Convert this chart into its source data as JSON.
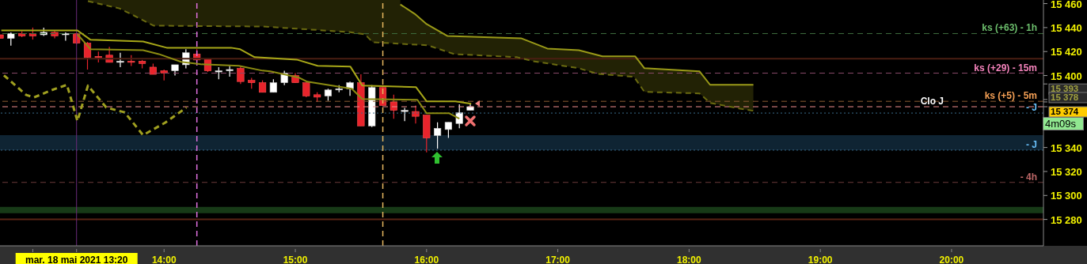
{
  "chart_data": {
    "type": "candlestick",
    "x": [
      12.75,
      12.8333,
      12.9167,
      13,
      13.0833,
      13.1667,
      13.25,
      13.3333,
      13.4167,
      13.5,
      13.5833,
      13.6667,
      13.75,
      13.8333,
      13.9167,
      14,
      14.0833,
      14.1667,
      14.25,
      14.3333,
      14.4167,
      14.5,
      14.5833,
      14.6667,
      14.75,
      14.8333,
      14.9167,
      15,
      15.0833,
      15.1667,
      15.25,
      15.3333,
      15.4167,
      15.5,
      15.5833,
      15.6667,
      15.75,
      15.8333,
      15.9167,
      16,
      16.0833,
      16.1667,
      16.25,
      16.3333
    ],
    "ohlc": [
      [
        15434,
        15434,
        15431,
        15431
      ],
      [
        15431,
        15436,
        15425,
        15435
      ],
      [
        15435,
        15437,
        15432,
        15433
      ],
      [
        15435,
        15440,
        15430,
        15433
      ],
      [
        15434,
        15440,
        15433,
        15436
      ],
      [
        15436,
        15438,
        15431,
        15433
      ],
      [
        15434,
        15436,
        15429,
        15435
      ],
      [
        15435,
        15435,
        15426,
        15427
      ],
      [
        15427,
        15428,
        15405,
        15415
      ],
      [
        15416,
        15420,
        15411,
        15415
      ],
      [
        15417,
        15424,
        15411,
        15411
      ],
      [
        15411,
        15419,
        15407,
        15412
      ],
      [
        15412,
        15417,
        15408,
        15411
      ],
      [
        15412,
        15413,
        15406,
        15410
      ],
      [
        15407,
        15410,
        15401,
        15401
      ],
      [
        15404,
        15405,
        15396,
        15402
      ],
      [
        15404,
        15409,
        15400,
        15409
      ],
      [
        15409,
        15422,
        15406,
        15419
      ],
      [
        15418,
        15422,
        15413,
        15413
      ],
      [
        15414,
        15414,
        15403,
        15404
      ],
      [
        15403,
        15407,
        15397,
        15404
      ],
      [
        15404,
        15408,
        15399,
        15405
      ],
      [
        15406,
        15408,
        15393,
        15395
      ],
      [
        15396,
        15398,
        15389,
        15394
      ],
      [
        15394,
        15396,
        15386,
        15386
      ],
      [
        15386,
        15397,
        15386,
        15394
      ],
      [
        15394,
        15404,
        15392,
        15402
      ],
      [
        15400,
        15402,
        15394,
        15394
      ],
      [
        15394,
        15394,
        15382,
        15383
      ],
      [
        15384,
        15386,
        15378,
        15382
      ],
      [
        15383,
        15389,
        15379,
        15388
      ],
      [
        15388,
        15392,
        15386,
        15389
      ],
      [
        15389,
        15395,
        15383,
        15394
      ],
      [
        15394,
        15401,
        15358,
        15358
      ],
      [
        15358,
        15392,
        15357,
        15390
      ],
      [
        15390,
        15392,
        15375,
        15375
      ],
      [
        15378,
        15384,
        15364,
        15371
      ],
      [
        15370,
        15373,
        15362,
        15371
      ],
      [
        15370,
        15375,
        15360,
        15366
      ],
      [
        15367,
        15367,
        15336,
        15348
      ],
      [
        15350,
        15361,
        15339,
        15356
      ],
      [
        15355,
        15361,
        15348,
        15361
      ],
      [
        15360,
        15376,
        15356,
        15369
      ],
      [
        15371,
        15377,
        15371,
        15374
      ]
    ],
    "colors": [
      "#e8242c",
      "#ffffff",
      "#e8242c",
      "#e8242c",
      "#ffffff",
      "#e8242c",
      "#ffffff",
      "#e8242c",
      "#e8242c",
      "#e8242c",
      "#e8242c",
      "#ffffff",
      "#e8242c",
      "#e8242c",
      "#e8242c",
      "#e8242c",
      "#ffffff",
      "#ffffff",
      "#e8242c",
      "#e8242c",
      "#ffffff",
      "#ffffff",
      "#e8242c",
      "#e8242c",
      "#e8242c",
      "#ffffff",
      "#ffffff",
      "#e8242c",
      "#e8242c",
      "#e8242c",
      "#ffffff",
      "#ffffff",
      "#ffffff",
      "#e8242c",
      "#ffffff",
      "#e8242c",
      "#e8242c",
      "#ffffff",
      "#e8242c",
      "#e8242c",
      "#ffffff",
      "#ffffff",
      "#ffffff",
      "#ffffff"
    ],
    "series": [
      {
        "type": "line",
        "color": "#a8a818",
        "line_style": "solid",
        "x": [
          12.76,
          13.34,
          13.44,
          13.84,
          14.02,
          14.51,
          14.58,
          14.69,
          15.01,
          15.17,
          15.42,
          15.51,
          15.92,
          16.0,
          16.22,
          16.34
        ],
        "values": [
          15437.6,
          15437.6,
          15429.8,
          15428.4,
          15423.2,
          15423.2,
          15421.9,
          15415.3,
          15413.3,
          15408.1,
          15407.4,
          15391.6,
          15390.3,
          15378.5,
          15378.5,
          15376.5
        ]
      },
      {
        "type": "line",
        "color": "#8c8c12",
        "line_style": "solid",
        "x": [
          13.34,
          13.44,
          13.84,
          13.96,
          14.13,
          14.28,
          14.57,
          14.75,
          14.81,
          15.03,
          15.09,
          15.43,
          15.51,
          15.93,
          16.0,
          16.17,
          16.25
        ],
        "values": [
          15434.4,
          15421.9,
          15421.2,
          15417.9,
          15411.4,
          15409.4,
          15408.1,
          15404.1,
          15403.5,
          15398.2,
          15394.9,
          15389.0,
          15380.5,
          15379.8,
          15368.6,
          15368.6,
          15364.0
        ]
      },
      {
        "type": "line",
        "color": "#a0a020",
        "line_style": "dashed",
        "x": [
          12.78,
          12.95,
          13.01,
          13.14,
          13.26,
          13.34,
          13.42,
          13.56,
          13.7,
          13.84,
          14.01,
          14.17
        ],
        "values": [
          15400.2,
          15383.8,
          15381.8,
          15387.7,
          15392.3,
          15362.1,
          15391.6,
          15373.3,
          15369.3,
          15350.3,
          15360.8,
          15373.3
        ]
      },
      {
        "type": "line",
        "color": "#9a9a18",
        "line_style": "solid",
        "x": [
          15.8,
          15.91,
          16.0,
          16.16,
          16.72,
          16.92,
          17.16,
          17.34,
          17.59,
          17.66,
          18.08,
          18.16,
          18.49
        ],
        "values": [
          15459.3,
          15451.4,
          15442.9,
          15433.0,
          15431.1,
          15422.5,
          15421.2,
          15416.0,
          15416.0,
          15406.1,
          15403.5,
          15392.3,
          15392.3
        ]
      },
      {
        "type": "line",
        "color": "#6a6a10",
        "line_style": "dashed",
        "x": [
          13.42,
          13.66,
          13.78,
          13.92,
          14.75,
          15.41,
          15.53,
          15.59,
          16.01,
          16.21,
          16.69,
          16.81,
          17.16,
          17.3,
          17.58,
          17.66,
          18.08,
          18.16,
          18.38,
          18.49
        ],
        "values": [
          15462.0,
          15456.0,
          15449.5,
          15441.6,
          15440.9,
          15436.3,
          15434.4,
          15427.8,
          15425.2,
          15417.9,
          15415.3,
          15412.0,
          15406.1,
          15401.5,
          15398.9,
          15386.4,
          15385.1,
          15377.2,
          15372.6,
          15370.6
        ]
      }
    ],
    "xlim": [
      12.75,
      20.7
    ],
    "xticks": [
      {
        "value": 13,
        "label": null
      },
      {
        "value": 13.3333,
        "label": "mar. 18 mai 2021 13:20"
      },
      {
        "value": 14,
        "label": "14:00"
      },
      {
        "value": 15,
        "label": "15:00"
      },
      {
        "value": 16,
        "label": "16:00"
      },
      {
        "value": 17,
        "label": "17:00"
      },
      {
        "value": 18,
        "label": "18:00"
      },
      {
        "value": 19,
        "label": "19:00"
      },
      {
        "value": 20,
        "label": "20:00"
      }
    ],
    "ylim": [
      15258,
      15463
    ],
    "yticks": [
      {
        "value": 15280,
        "label": "15 280"
      },
      {
        "value": 15300,
        "label": "15 300"
      },
      {
        "value": 15320,
        "label": "15 320"
      },
      {
        "value": 15340,
        "label": "15 340"
      },
      {
        "value": 15360,
        "label": null
      },
      {
        "value": 15380,
        "label": null
      },
      {
        "value": 15400,
        "label": "15 400"
      },
      {
        "value": 15420,
        "label": "15 420"
      },
      {
        "value": 15440,
        "label": "15 440"
      },
      {
        "value": 15460,
        "label": "15 460"
      },
      {
        "value": 15393,
        "label": "15 393"
      },
      {
        "value": 15378,
        "label": "15 378"
      },
      {
        "value": 15374,
        "label": "15 374"
      }
    ],
    "ref_lines": [
      {
        "axis": "y",
        "value": 15435,
        "label": "ks (+63) - 1h",
        "color": "#3d6b3d",
        "line_style": "dashed"
      },
      {
        "axis": "y",
        "value": 15414,
        "label": null,
        "color": "#4a1e12",
        "line_style": "solid"
      },
      {
        "axis": "y",
        "value": 15402,
        "label": "ks (+29) - 15m",
        "color": "#8a4a6a",
        "line_style": "dashed"
      },
      {
        "axis": "y",
        "value": 15378.5,
        "label": "ks (+5) - 5m",
        "color": "#8a5a30",
        "line_style": "dashed"
      },
      {
        "axis": "y",
        "value": 15374,
        "label": "Clo J",
        "color": "#f09090",
        "line_style": "dashed"
      },
      {
        "axis": "y",
        "value": 15368.7,
        "label": "- J",
        "color": "#3a6a8a",
        "line_style": "dotted"
      },
      {
        "axis": "y",
        "value": 15337.8,
        "label": "- J",
        "color": "#3a6a8a",
        "line_style": "dotted"
      },
      {
        "axis": "y",
        "value": 15310.9,
        "label": "- 4h",
        "color": "#6a3a3a",
        "line_style": "dashed"
      },
      {
        "axis": "y",
        "value": 15280,
        "label": null,
        "color": "#5a2414",
        "line_style": "solid"
      },
      {
        "axis": "x",
        "value": 13.3333,
        "label": null,
        "color": "#6a2a7a",
        "line_style": "solid"
      },
      {
        "axis": "x",
        "value": 14.25,
        "label": null,
        "color": "#e070e0",
        "line_style": "dashed"
      },
      {
        "axis": "x",
        "value": 15.6667,
        "label": null,
        "color": "#e8b860",
        "line_style": "dashed"
      }
    ],
    "bands": [
      {
        "axis": "y",
        "from": 15337.8,
        "to": 15350.3,
        "color": "#0f2433"
      },
      {
        "axis": "y",
        "from": 15285.2,
        "to": 15290.5,
        "color": "#173a17"
      }
    ],
    "annotations": [
      "4m09s"
    ],
    "grid": false,
    "legend": false,
    "marker": "none"
  }
}
